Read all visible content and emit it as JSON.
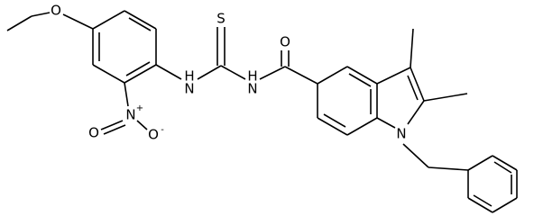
{
  "atoms": [
    {
      "label": "O"
    },
    {
      "label": "S"
    },
    {
      "label": "O"
    },
    {
      "label": "H"
    },
    {
      "label": "N"
    },
    {
      "label": "H"
    },
    {
      "label": "N"
    },
    {
      "label": "N"
    },
    {
      "label": "+"
    },
    {
      "label": "O"
    },
    {
      "label": "O"
    },
    {
      "label": "-"
    },
    {
      "label": "N"
    }
  ]
}
